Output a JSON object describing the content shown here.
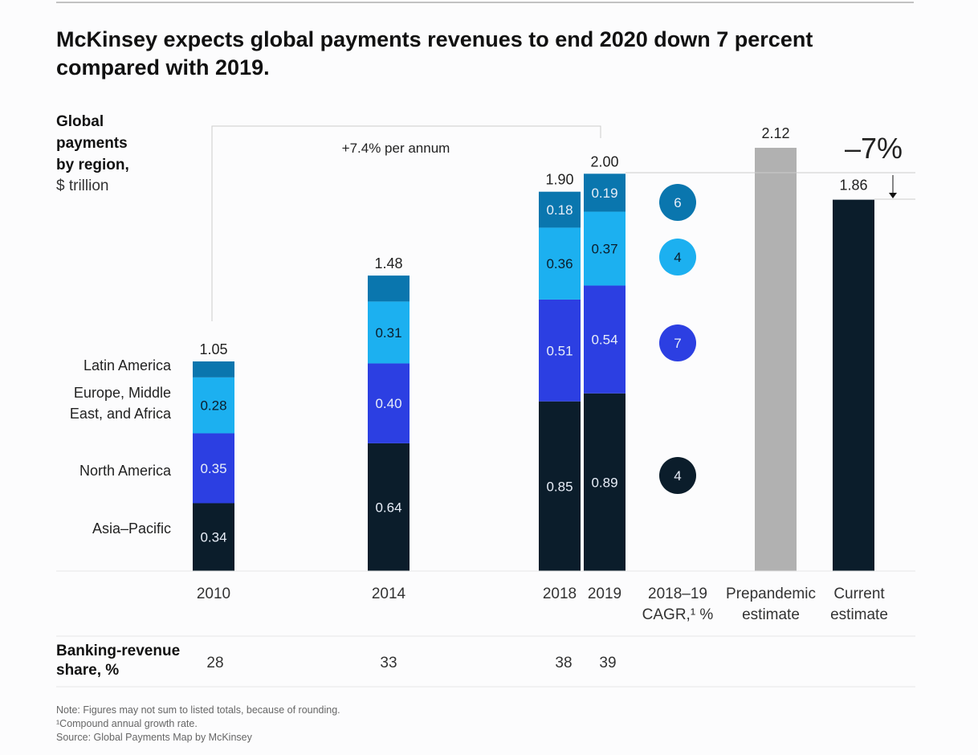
{
  "title_lines": [
    "McKinsey expects global payments revenues to end 2020 down 7 percent",
    "compared with 2019."
  ],
  "ylabel_lines": [
    "Global",
    "payments",
    "by region,",
    "$ trillion"
  ],
  "growth_annotation": "+7.4% per annum",
  "change_annotation": "–7%",
  "chart_data": {
    "type": "bar",
    "stacked": true,
    "categories": [
      "2010",
      "2014",
      "2018",
      "2019"
    ],
    "series": [
      {
        "name": "Asia–Pacific",
        "color": "#0b1d2b",
        "values": [
          0.34,
          0.64,
          0.85,
          0.89
        ],
        "labels": [
          "0.34",
          "0.64",
          "0.85",
          "0.89"
        ]
      },
      {
        "name": "North America",
        "color": "#2c3fe2",
        "values": [
          0.35,
          0.4,
          0.51,
          0.54
        ],
        "labels": [
          "0.35",
          "0.40",
          "0.51",
          "0.54"
        ]
      },
      {
        "name": "Europe, Middle East, and Africa",
        "color": "#1cb0f0",
        "values": [
          0.28,
          0.31,
          0.36,
          0.37
        ],
        "labels": [
          "0.28",
          "0.31",
          "0.36",
          "0.37"
        ]
      },
      {
        "name": "Latin America",
        "color": "#0a76ae",
        "values": [
          0.08,
          0.13,
          0.18,
          0.19
        ],
        "labels": [
          "",
          "",
          "0.18",
          "0.19"
        ]
      }
    ],
    "totals": [
      "1.05",
      "1.48",
      "1.90",
      "2.00"
    ],
    "estimates": [
      {
        "label_lines": [
          "Prepandemic",
          "estimate"
        ],
        "value": 2.12,
        "label": "2.12",
        "color": "#b1b1b1"
      },
      {
        "label_lines": [
          "Current",
          "estimate"
        ],
        "value": 1.86,
        "label": "1.86",
        "color": "#0b1d2b"
      }
    ],
    "cagr": {
      "label_lines": [
        "2018–19",
        "CAGR,¹ %"
      ],
      "values": [
        "4",
        "7",
        "4",
        "6"
      ]
    },
    "legend_labels": [
      "Asia–Pacific",
      "North America",
      [
        "Europe, Middle",
        "East, and Africa"
      ],
      "Latin America"
    ],
    "ylim": [
      0,
      2.12
    ]
  },
  "banking_share": {
    "label_lines": [
      "Banking-revenue",
      "share, %"
    ],
    "values": [
      "28",
      "33",
      "38",
      "39"
    ]
  },
  "notes": [
    "Note: Figures may not sum to listed totals, because of rounding.",
    "¹Compound annual growth rate.",
    "Source: Global Payments Map by McKinsey"
  ]
}
